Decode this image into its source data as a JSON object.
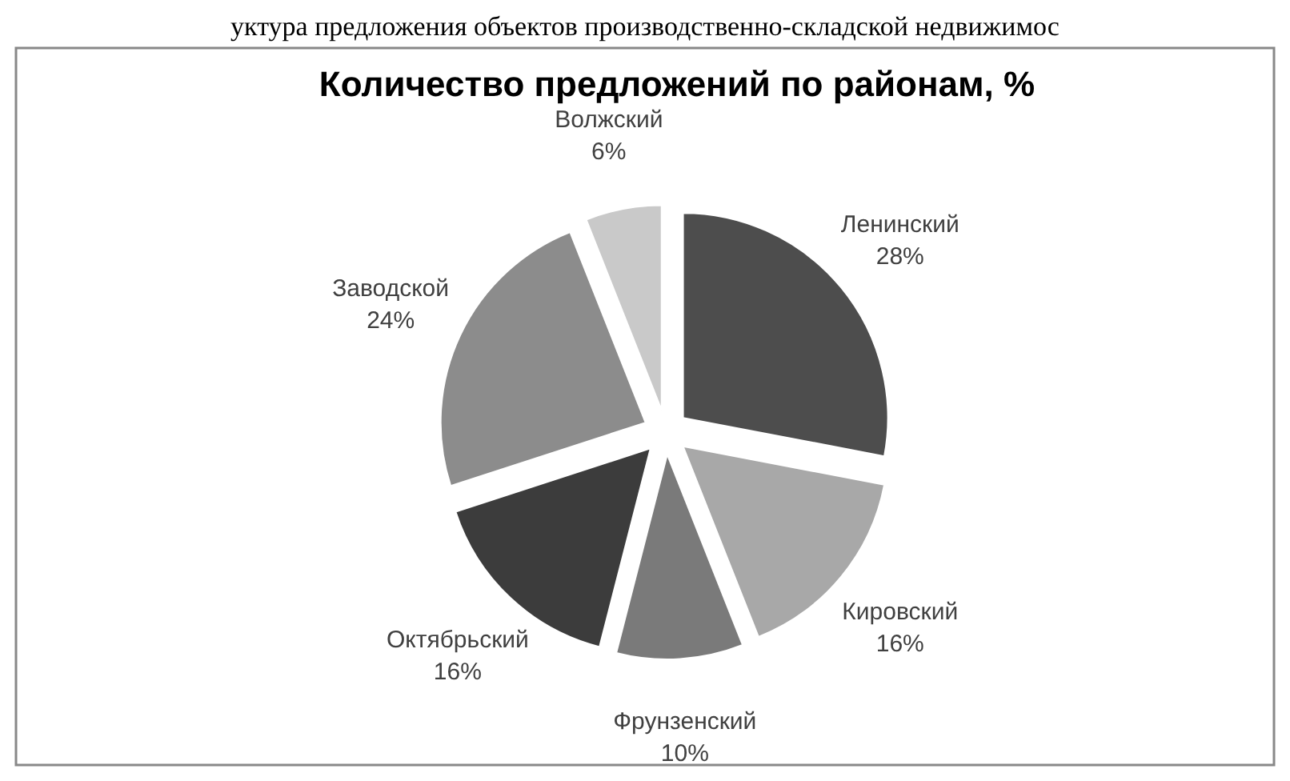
{
  "chart_data": {
    "type": "pie",
    "title": "Количество предложений по районам, %",
    "categories": [
      "Ленинский",
      "Кировский",
      "Фрунзенский",
      "Октябрьский",
      "Заводской",
      "Волжский"
    ],
    "values": [
      28,
      16,
      10,
      16,
      24,
      6
    ],
    "value_labels": [
      "28%",
      "16%",
      "10%",
      "16%",
      "24%",
      "6%"
    ],
    "colors": [
      "#4d4d4d",
      "#a8a8a8",
      "#7a7a7a",
      "#3c3c3c",
      "#8c8c8c",
      "#c9c9c9"
    ],
    "annotations": [
      "уктура предложения объектов производственно-складской недвижимос"
    ]
  }
}
